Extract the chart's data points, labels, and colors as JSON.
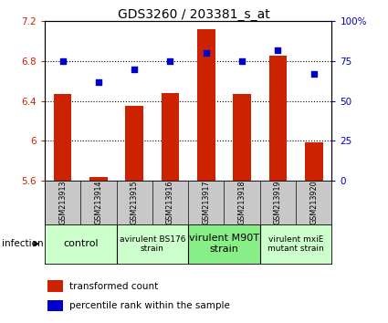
{
  "title": "GDS3260 / 203381_s_at",
  "samples": [
    "GSM213913",
    "GSM213914",
    "GSM213915",
    "GSM213916",
    "GSM213917",
    "GSM213918",
    "GSM213919",
    "GSM213920"
  ],
  "bar_values": [
    6.47,
    5.64,
    6.35,
    6.48,
    7.12,
    6.47,
    6.85,
    5.99
  ],
  "dot_values": [
    75,
    62,
    70,
    75,
    80,
    75,
    82,
    67
  ],
  "bar_bottom": 5.6,
  "ylim_left": [
    5.6,
    7.2
  ],
  "ylim_right": [
    0,
    100
  ],
  "yticks_left": [
    5.6,
    6.0,
    6.4,
    6.8,
    7.2
  ],
  "ytick_labels_left": [
    "5.6",
    "6",
    "6.4",
    "6.8",
    "7.2"
  ],
  "yticks_right": [
    0,
    25,
    50,
    75,
    100
  ],
  "ytick_labels_right": [
    "0",
    "25",
    "50",
    "75",
    "100%"
  ],
  "hlines": [
    6.0,
    6.4,
    6.8
  ],
  "bar_color": "#cc2200",
  "dot_color": "#0000cc",
  "bar_width": 0.5,
  "groups": [
    {
      "label": "control",
      "samples_range": [
        0,
        2
      ],
      "color": "#ccffcc",
      "fontsize": 8
    },
    {
      "label": "avirulent BS176\nstrain",
      "samples_range": [
        2,
        4
      ],
      "color": "#ccffcc",
      "fontsize": 6.5
    },
    {
      "label": "virulent M90T\nstrain",
      "samples_range": [
        4,
        6
      ],
      "color": "#88ee88",
      "fontsize": 8
    },
    {
      "label": "virulent mxiE\nmutant strain",
      "samples_range": [
        6,
        8
      ],
      "color": "#ccffcc",
      "fontsize": 6.5
    }
  ],
  "infection_label": "infection",
  "legend_bar_label": "transformed count",
  "legend_dot_label": "percentile rank within the sample",
  "label_bg": "#c8c8c8",
  "plot_bg": "#ffffff"
}
